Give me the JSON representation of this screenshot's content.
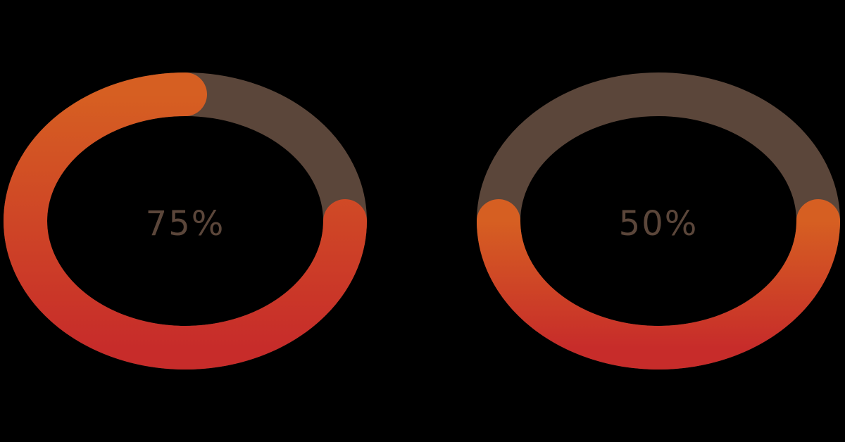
{
  "colors": {
    "background": "#000000",
    "track": "#5b463a",
    "gradient_top": "#d65f22",
    "gradient_bottom": "#c72c2a",
    "label": "#5b463a"
  },
  "rings": [
    {
      "label": "75%",
      "value": 0.75
    },
    {
      "label": "50%",
      "value": 0.5
    }
  ]
}
